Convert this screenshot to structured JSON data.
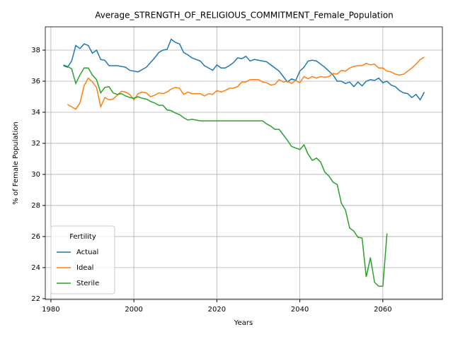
{
  "chart_data": {
    "type": "line",
    "title": "Average_STRENGTH_OF_RELIGIOUS_COMMITMENT_Female_Population",
    "x_label": "Years",
    "y_label": "% of Female Population",
    "legend_title": "Fertility",
    "legend": "lower left",
    "grid": true,
    "xlim": [
      1978.65,
      2074.35
    ],
    "xticks": [
      1980,
      2000,
      2020,
      2040,
      2060
    ],
    "ylim": [
      21.95,
      39.5
    ],
    "yticks": [
      22,
      24,
      26,
      28,
      30,
      32,
      34,
      36,
      38
    ],
    "x": [
      1983,
      1984,
      1985,
      1986,
      1987,
      1988,
      1989,
      1990,
      1991,
      1992,
      1993,
      1994,
      1995,
      1996,
      1997,
      1998,
      1999,
      2000,
      2001,
      2002,
      2003,
      2004,
      2005,
      2006,
      2007,
      2008,
      2009,
      2010,
      2011,
      2012,
      2013,
      2014,
      2015,
      2016,
      2017,
      2018,
      2019,
      2020,
      2021,
      2022,
      2023,
      2024,
      2025,
      2026,
      2027,
      2028,
      2029,
      2030,
      2031,
      2032,
      2033,
      2034,
      2035,
      2036,
      2037,
      2038,
      2039,
      2040,
      2041,
      2042,
      2043,
      2044,
      2045,
      2046,
      2047,
      2048,
      2049,
      2050,
      2051,
      2052,
      2053,
      2054,
      2055,
      2056,
      2057,
      2058,
      2059,
      2060,
      2061,
      2062,
      2063,
      2064,
      2065,
      2066,
      2067,
      2068,
      2069,
      2070
    ],
    "series": [
      {
        "name": "Actual",
        "color": "#1f77b4",
        "values": [
          37.0,
          36.9,
          37.3,
          38.3,
          38.1,
          38.4,
          38.3,
          37.8,
          38.0,
          37.4,
          37.35,
          37.0,
          37.0,
          37.0,
          36.95,
          36.9,
          36.7,
          36.65,
          36.6,
          36.75,
          36.9,
          37.2,
          37.5,
          37.85,
          38.0,
          38.05,
          38.7,
          38.5,
          38.4,
          37.85,
          37.7,
          37.5,
          37.4,
          37.3,
          37.0,
          36.85,
          36.7,
          37.05,
          36.85,
          36.85,
          37.0,
          37.2,
          37.5,
          37.45,
          37.6,
          37.3,
          37.4,
          37.35,
          37.3,
          37.25,
          37.05,
          36.85,
          36.65,
          36.3,
          35.95,
          36.15,
          36.05,
          36.65,
          36.9,
          37.3,
          37.35,
          37.3,
          37.1,
          36.9,
          36.65,
          36.4,
          36.0,
          36.0,
          35.85,
          35.95,
          35.65,
          35.95,
          35.7,
          36.0,
          36.1,
          36.05,
          36.2,
          35.9,
          36.0,
          35.75,
          35.65,
          35.4,
          35.25,
          35.2,
          34.95,
          35.15,
          34.8,
          35.3
        ]
      },
      {
        "name": "Ideal",
        "color": "#ff7f0e",
        "values": [
          null,
          34.5,
          34.35,
          34.2,
          34.6,
          35.7,
          36.2,
          35.95,
          35.6,
          34.35,
          34.95,
          34.8,
          34.85,
          35.1,
          35.35,
          35.3,
          35.15,
          34.8,
          35.2,
          35.3,
          35.25,
          35.0,
          35.1,
          35.25,
          35.2,
          35.3,
          35.5,
          35.6,
          35.55,
          35.15,
          35.3,
          35.2,
          35.2,
          35.2,
          35.05,
          35.2,
          35.15,
          35.4,
          35.3,
          35.4,
          35.55,
          35.55,
          35.65,
          35.95,
          35.95,
          36.1,
          36.1,
          36.1,
          35.95,
          35.9,
          35.75,
          35.8,
          36.1,
          35.95,
          36.0,
          35.85,
          36.05,
          35.9,
          36.3,
          36.15,
          36.3,
          36.2,
          36.3,
          36.25,
          36.3,
          36.5,
          36.45,
          36.7,
          36.65,
          36.85,
          36.95,
          37.0,
          37.0,
          37.15,
          37.05,
          37.1,
          36.85,
          36.85,
          36.65,
          36.6,
          36.45,
          36.4,
          36.45,
          36.65,
          36.85,
          37.1,
          37.4,
          37.55
        ]
      },
      {
        "name": "Sterile",
        "color": "#2ca02c",
        "values": [
          37.05,
          36.95,
          36.8,
          35.85,
          36.4,
          36.85,
          36.85,
          36.4,
          36.1,
          35.25,
          35.6,
          35.65,
          35.25,
          35.15,
          35.2,
          35.05,
          34.95,
          34.9,
          35.0,
          34.9,
          34.85,
          34.7,
          34.6,
          34.45,
          34.45,
          34.15,
          34.1,
          33.95,
          33.85,
          33.65,
          33.5,
          33.55,
          33.5,
          33.45,
          33.45,
          33.45,
          33.45,
          33.45,
          33.45,
          33.45,
          33.45,
          33.45,
          33.45,
          33.45,
          33.45,
          33.45,
          33.45,
          33.45,
          33.45,
          33.25,
          33.1,
          32.9,
          32.9,
          32.55,
          32.2,
          31.8,
          31.7,
          31.6,
          31.9,
          31.3,
          30.9,
          31.05,
          30.8,
          30.15,
          29.9,
          29.5,
          29.35,
          28.15,
          27.7,
          26.55,
          26.35,
          25.95,
          25.9,
          23.4,
          24.65,
          23.05,
          22.8,
          22.8,
          26.2,
          null,
          null,
          null,
          null,
          null,
          null,
          null,
          null,
          null
        ]
      }
    ]
  }
}
